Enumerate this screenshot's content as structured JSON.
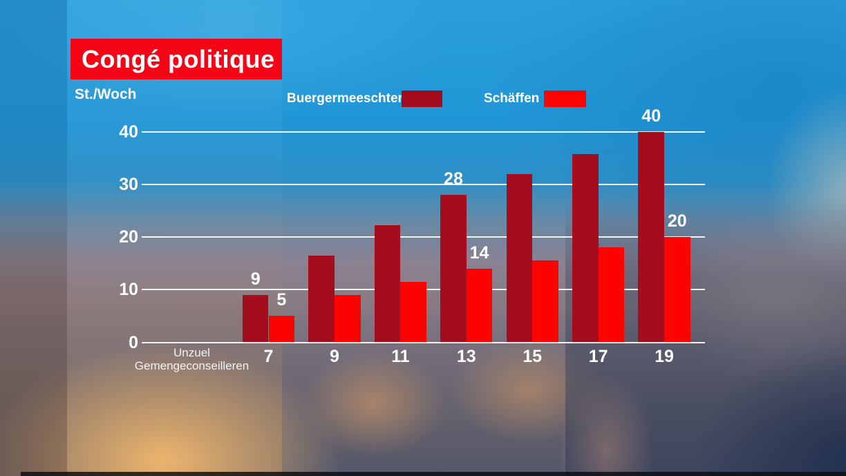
{
  "header": {
    "title": "Congé politique"
  },
  "axis": {
    "unit_label": "St./Woch",
    "x_title_line1": "Unzuel",
    "x_title_line2": "Gemengeconseilleren"
  },
  "colors": {
    "banner_red": "#F40617",
    "buergermeeschter_dark_red": "#A40D1E",
    "schaeffen_bright_red": "#FB0301",
    "text": "#FFFFFF",
    "sky_blue": "#2498D9"
  },
  "chart_data": {
    "type": "bar",
    "title": "Congé politique",
    "xlabel": "Unzuel Gemengeconseilleren",
    "ylabel": "St./Woch",
    "categories": [
      7,
      9,
      11,
      13,
      15,
      17,
      19
    ],
    "series": [
      {
        "name": "Buergermeeschter",
        "color": "#A40D1E",
        "values": [
          9,
          16.5,
          22.25,
          28,
          32,
          35.75,
          40
        ]
      },
      {
        "name": "Schäffen",
        "color": "#FB0301",
        "values": [
          5,
          9,
          11.5,
          14,
          15.5,
          18,
          20
        ]
      }
    ],
    "data_labels_shown_at_categories": [
      7,
      13,
      19
    ],
    "ylim": [
      0,
      40
    ],
    "yticks": [
      0,
      10,
      20,
      30,
      40
    ],
    "grid": true,
    "legend_position": "top"
  }
}
